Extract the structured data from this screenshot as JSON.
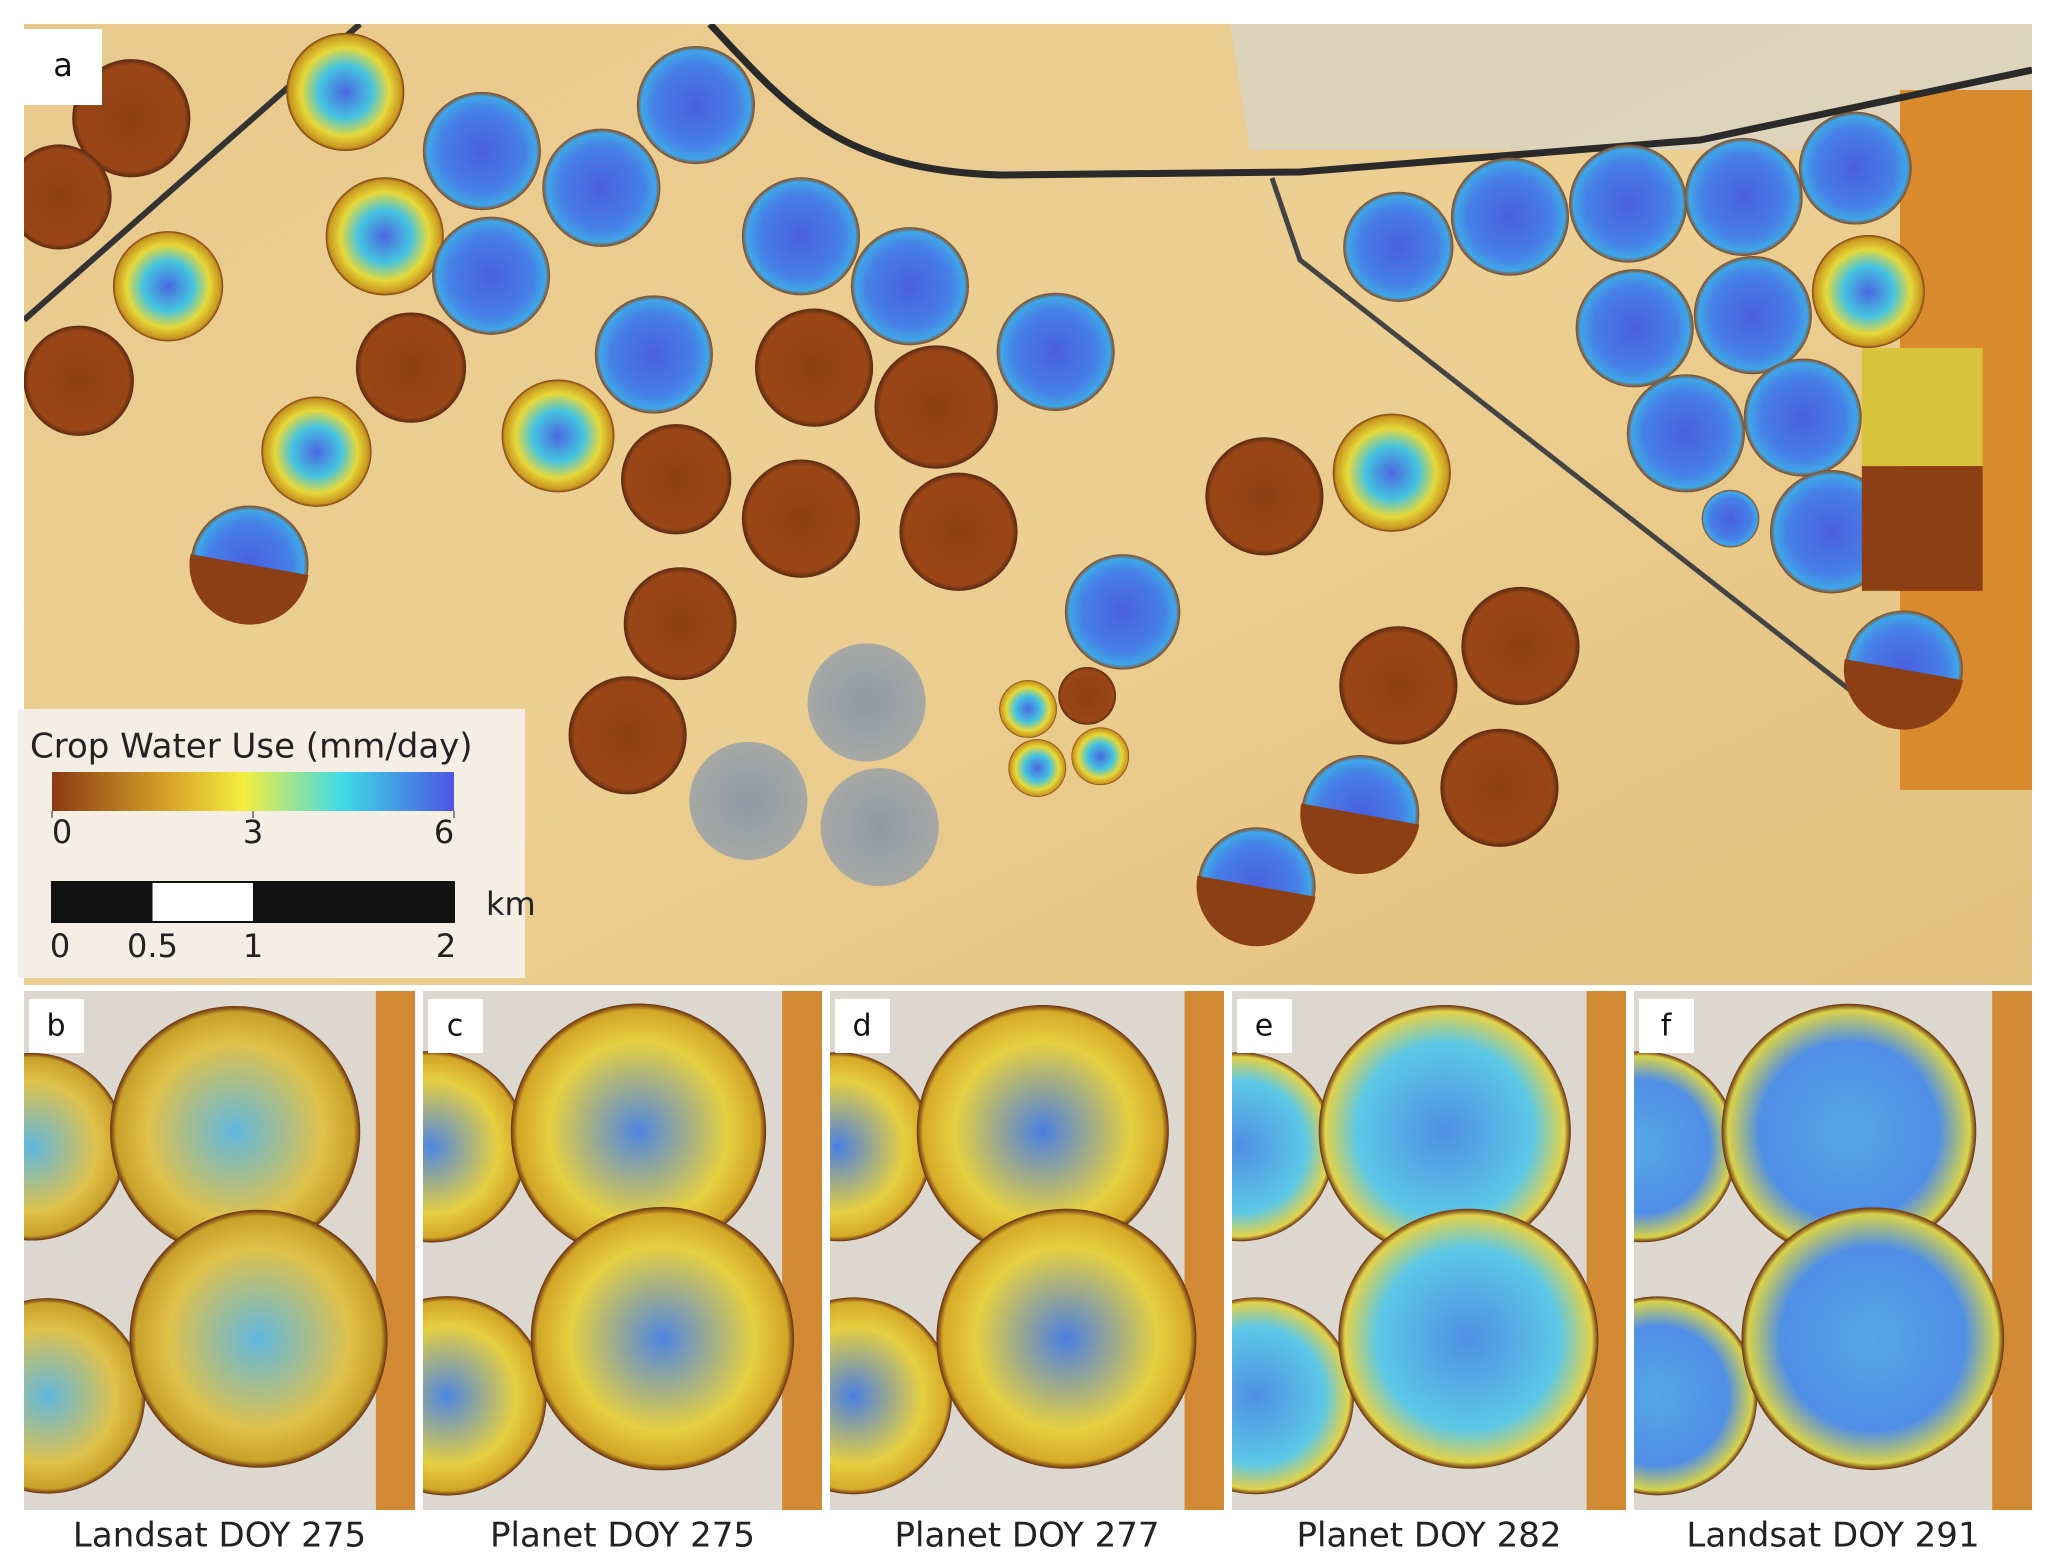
{
  "main": {
    "label": "a"
  },
  "legend": {
    "title": "Crop Water Use (mm/day)",
    "lim": [
      0,
      6
    ],
    "ticks": [
      0,
      3,
      6
    ]
  },
  "scalebar": {
    "unit": "km",
    "lim": [
      0,
      2
    ],
    "ticks": [
      0,
      0.5,
      1,
      2
    ]
  },
  "panels": [
    {
      "label": "b",
      "caption": "Landsat DOY 275"
    },
    {
      "label": "c",
      "caption": "Planet DOY 275"
    },
    {
      "label": "d",
      "caption": "Planet DOY 277"
    },
    {
      "label": "e",
      "caption": "Planet DOY 282"
    },
    {
      "label": "f",
      "caption": "Landsat DOY 291"
    }
  ]
}
